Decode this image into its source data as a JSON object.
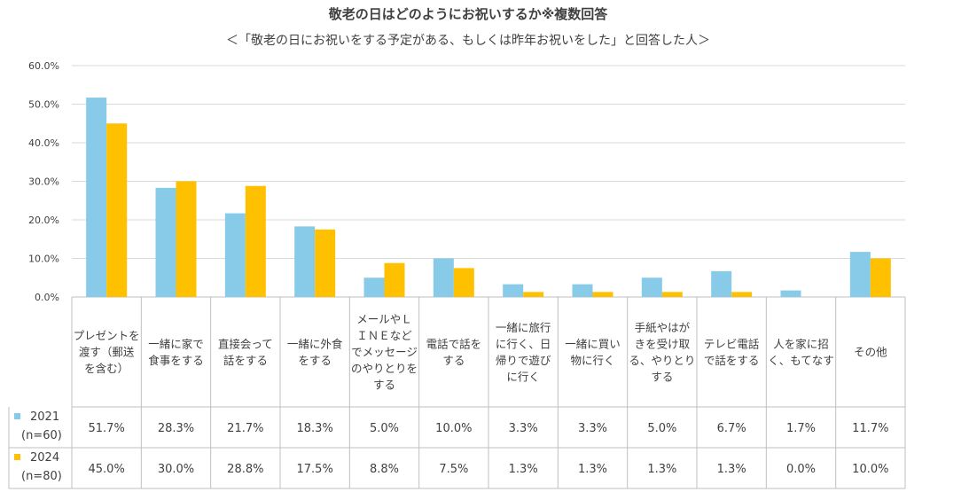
{
  "chart_data": {
    "type": "bar",
    "title": "敬老の日はどのようにお祝いするか※複数回答",
    "subtitle": "＜「敬老の日にお祝いをする予定がある、もしくは昨年お祝いをした」と回答した人＞",
    "ylim": [
      0,
      60
    ],
    "yticks": [
      "0.0%",
      "10.0%",
      "20.0%",
      "30.0%",
      "40.0%",
      "50.0%",
      "60.0%"
    ],
    "categories": [
      [
        "プレゼントを",
        "渡す（郵送",
        "を含む）"
      ],
      [
        "一緒に家で",
        "食事をする"
      ],
      [
        "直接会って",
        "話をする"
      ],
      [
        "一緒に外食",
        "をする"
      ],
      [
        "メールやＬ",
        "ＩＮＥなど",
        "でメッセージ",
        "のやりとりを",
        "する"
      ],
      [
        "電話で話を",
        "する"
      ],
      [
        "一緒に旅行",
        "に行く、日",
        "帰りで遊び",
        "に行く"
      ],
      [
        "一緒に買い",
        "物に行く"
      ],
      [
        "手紙やはが",
        "きを受け取",
        "る、やりとり",
        "する"
      ],
      [
        "テレビ電話",
        "で話をする"
      ],
      [
        "人を家に招",
        "く、もてなす"
      ],
      [
        "その他"
      ]
    ],
    "series": [
      {
        "name": "2021",
        "sub": "(n=60)",
        "color": "#87CBE8",
        "values": [
          51.7,
          28.3,
          21.7,
          18.3,
          5.0,
          10.0,
          3.3,
          3.3,
          5.0,
          6.7,
          1.7,
          11.7
        ],
        "labels": [
          "51.7%",
          "28.3%",
          "21.7%",
          "18.3%",
          "5.0%",
          "10.0%",
          "3.3%",
          "3.3%",
          "5.0%",
          "6.7%",
          "1.7%",
          "11.7%"
        ]
      },
      {
        "name": "2024",
        "sub": "(n=80)",
        "color": "#FFC000",
        "values": [
          45.0,
          30.0,
          28.8,
          17.5,
          8.8,
          7.5,
          1.3,
          1.3,
          1.3,
          1.3,
          0.0,
          10.0
        ],
        "labels": [
          "45.0%",
          "30.0%",
          "28.8%",
          "17.5%",
          "8.8%",
          "7.5%",
          "1.3%",
          "1.3%",
          "1.3%",
          "1.3%",
          "0.0%",
          "10.0%"
        ]
      }
    ]
  }
}
